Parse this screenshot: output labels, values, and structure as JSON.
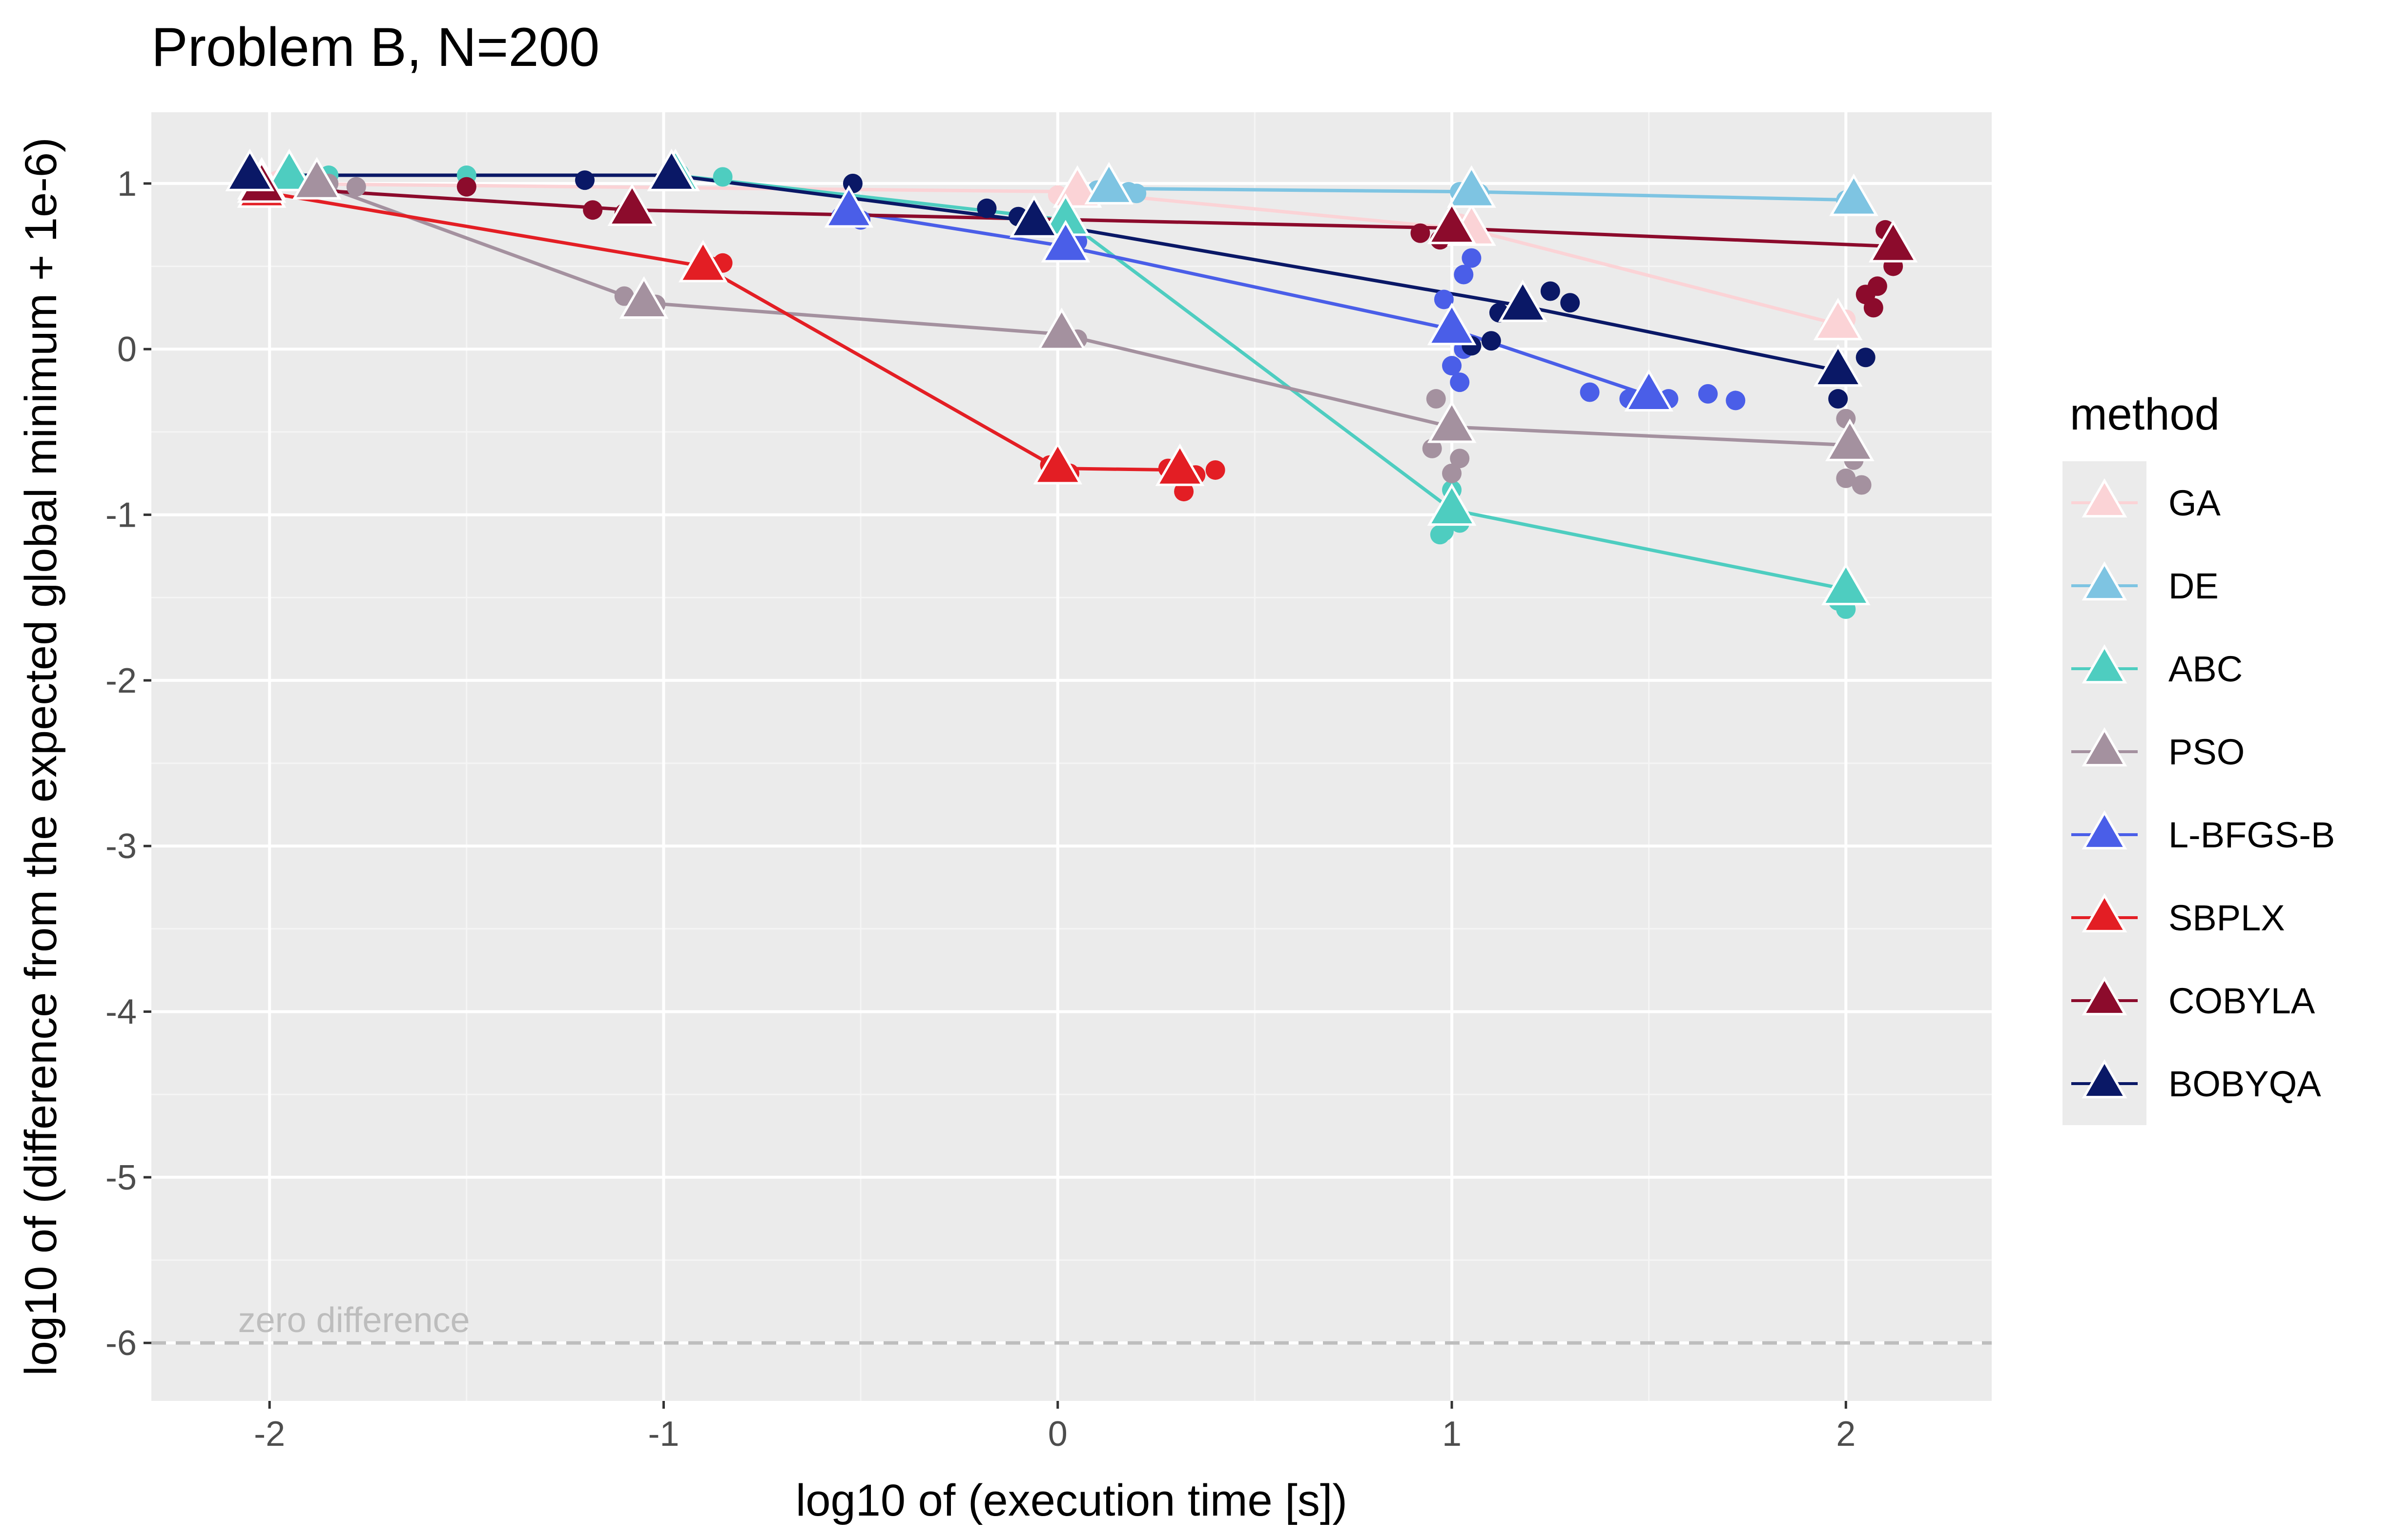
{
  "chart_data": {
    "type": "scatter",
    "title": "Problem B, N=200",
    "xlabel": "log10 of (execution time [s])",
    "ylabel": "log10 of (difference from the expected global minimum + 1e-6)",
    "xlim": [
      -2.3,
      2.37
    ],
    "ylim": [
      -6.35,
      1.43
    ],
    "x_ticks": [
      -2,
      -1,
      0,
      1,
      2
    ],
    "y_ticks": [
      1,
      0,
      -1,
      -2,
      -3,
      -4,
      -5,
      -6
    ],
    "grid": true,
    "legend": {
      "title": "method",
      "placement": "right"
    },
    "reference_line": {
      "y": -6,
      "label": "zero difference",
      "style": "dashed",
      "color": "#bdbdbd"
    },
    "series": [
      {
        "name": "GA",
        "color": "#fbd3d6",
        "mean": [
          [
            -2.02,
            1.0
          ],
          [
            0.05,
            0.95
          ],
          [
            1.05,
            0.72
          ],
          [
            1.98,
            0.15
          ]
        ],
        "points": [
          [
            -2.05,
            0.98
          ],
          [
            -1.98,
            1.02
          ],
          [
            -2.02,
            0.96
          ],
          [
            0.05,
            0.98
          ],
          [
            0.0,
            0.93
          ],
          [
            0.1,
            0.96
          ],
          [
            1.02,
            0.76
          ],
          [
            1.06,
            0.7
          ],
          [
            1.96,
            0.12
          ],
          [
            2.0,
            0.18
          ]
        ]
      },
      {
        "name": "DE",
        "color": "#7ec4e2",
        "mean": [
          [
            0.13,
            0.97
          ],
          [
            1.05,
            0.95
          ],
          [
            2.02,
            0.9
          ]
        ],
        "points": [
          [
            0.1,
            0.96
          ],
          [
            0.18,
            0.95
          ],
          [
            0.2,
            0.94
          ],
          [
            1.02,
            0.95
          ],
          [
            1.07,
            0.94
          ],
          [
            2.0,
            0.9
          ],
          [
            2.03,
            0.88
          ]
        ]
      },
      {
        "name": "ABC",
        "color": "#4ecdc0",
        "mean": [
          [
            -1.95,
            1.05
          ],
          [
            -0.97,
            1.05
          ],
          [
            0.02,
            0.78
          ],
          [
            1.0,
            -0.97
          ],
          [
            2.0,
            -1.45
          ]
        ],
        "points": [
          [
            -1.93,
            1.02
          ],
          [
            -1.85,
            1.05
          ],
          [
            -1.5,
            1.05
          ],
          [
            -0.96,
            1.06
          ],
          [
            -0.85,
            1.04
          ],
          [
            0.02,
            0.75
          ],
          [
            1.0,
            -0.85
          ],
          [
            0.98,
            -1.1
          ],
          [
            1.02,
            -1.05
          ],
          [
            0.97,
            -1.12
          ],
          [
            1.98,
            -1.52
          ],
          [
            2.0,
            -1.57
          ]
        ]
      },
      {
        "name": "PSO",
        "color": "#a4919f",
        "mean": [
          [
            -1.88,
            1.0
          ],
          [
            -1.05,
            0.28
          ],
          [
            0.01,
            0.09
          ],
          [
            1.0,
            -0.47
          ],
          [
            2.01,
            -0.58
          ]
        ],
        "points": [
          [
            -1.85,
            1.0
          ],
          [
            -1.78,
            0.98
          ],
          [
            -1.1,
            0.32
          ],
          [
            -1.02,
            0.27
          ],
          [
            0.0,
            0.08
          ],
          [
            0.05,
            0.06
          ],
          [
            0.96,
            -0.3
          ],
          [
            0.95,
            -0.6
          ],
          [
            1.02,
            -0.66
          ],
          [
            1.0,
            -0.75
          ],
          [
            2.0,
            -0.42
          ],
          [
            2.02,
            -0.67
          ],
          [
            2.0,
            -0.78
          ],
          [
            2.04,
            -0.82
          ]
        ]
      },
      {
        "name": "L-BFGS-B",
        "color": "#4a5ee8",
        "mean": [
          [
            -0.53,
            0.83
          ],
          [
            0.02,
            0.62
          ],
          [
            1.0,
            0.12
          ],
          [
            1.5,
            -0.28
          ]
        ],
        "points": [
          [
            -0.55,
            0.8
          ],
          [
            -0.5,
            0.78
          ],
          [
            0.02,
            0.6
          ],
          [
            0.05,
            0.65
          ],
          [
            0.98,
            0.3
          ],
          [
            1.03,
            0.45
          ],
          [
            1.05,
            0.55
          ],
          [
            1.0,
            -0.1
          ],
          [
            1.02,
            -0.2
          ],
          [
            1.03,
            0.0
          ],
          [
            1.35,
            -0.26
          ],
          [
            1.45,
            -0.3
          ],
          [
            1.55,
            -0.3
          ],
          [
            1.65,
            -0.27
          ],
          [
            1.72,
            -0.31
          ]
        ]
      },
      {
        "name": "SBPLX",
        "color": "#e31e24",
        "mean": [
          [
            -2.02,
            0.95
          ],
          [
            -0.9,
            0.5
          ],
          [
            0.0,
            -0.72
          ],
          [
            0.31,
            -0.73
          ]
        ],
        "points": [
          [
            -2.0,
            0.93
          ],
          [
            -0.88,
            0.5
          ],
          [
            -0.85,
            0.52
          ],
          [
            -0.02,
            -0.7
          ],
          [
            0.03,
            -0.75
          ],
          [
            0.28,
            -0.72
          ],
          [
            0.35,
            -0.76
          ],
          [
            0.4,
            -0.73
          ],
          [
            0.32,
            -0.86
          ]
        ]
      },
      {
        "name": "COBYLA",
        "color": "#8c0b2c",
        "mean": [
          [
            -2.02,
            0.98
          ],
          [
            -1.08,
            0.84
          ],
          [
            1.0,
            0.73
          ],
          [
            2.12,
            0.62
          ]
        ],
        "points": [
          [
            -1.5,
            0.98
          ],
          [
            -1.18,
            0.84
          ],
          [
            -1.1,
            0.82
          ],
          [
            0.92,
            0.7
          ],
          [
            0.97,
            0.66
          ],
          [
            2.1,
            0.72
          ],
          [
            2.12,
            0.5
          ],
          [
            2.08,
            0.38
          ],
          [
            2.05,
            0.33
          ],
          [
            2.07,
            0.25
          ]
        ]
      },
      {
        "name": "BOBYQA",
        "color": "#0a1866",
        "mean": [
          [
            -2.05,
            1.05
          ],
          [
            -0.98,
            1.05
          ],
          [
            -0.06,
            0.77
          ],
          [
            1.18,
            0.26
          ],
          [
            1.98,
            -0.13
          ]
        ],
        "points": [
          [
            -1.2,
            1.02
          ],
          [
            -0.52,
            1.0
          ],
          [
            -0.18,
            0.85
          ],
          [
            -0.1,
            0.8
          ],
          [
            1.12,
            0.22
          ],
          [
            1.25,
            0.35
          ],
          [
            1.3,
            0.28
          ],
          [
            1.1,
            0.05
          ],
          [
            1.05,
            0.02
          ],
          [
            2.05,
            -0.05
          ],
          [
            1.98,
            -0.3
          ]
        ]
      }
    ]
  }
}
